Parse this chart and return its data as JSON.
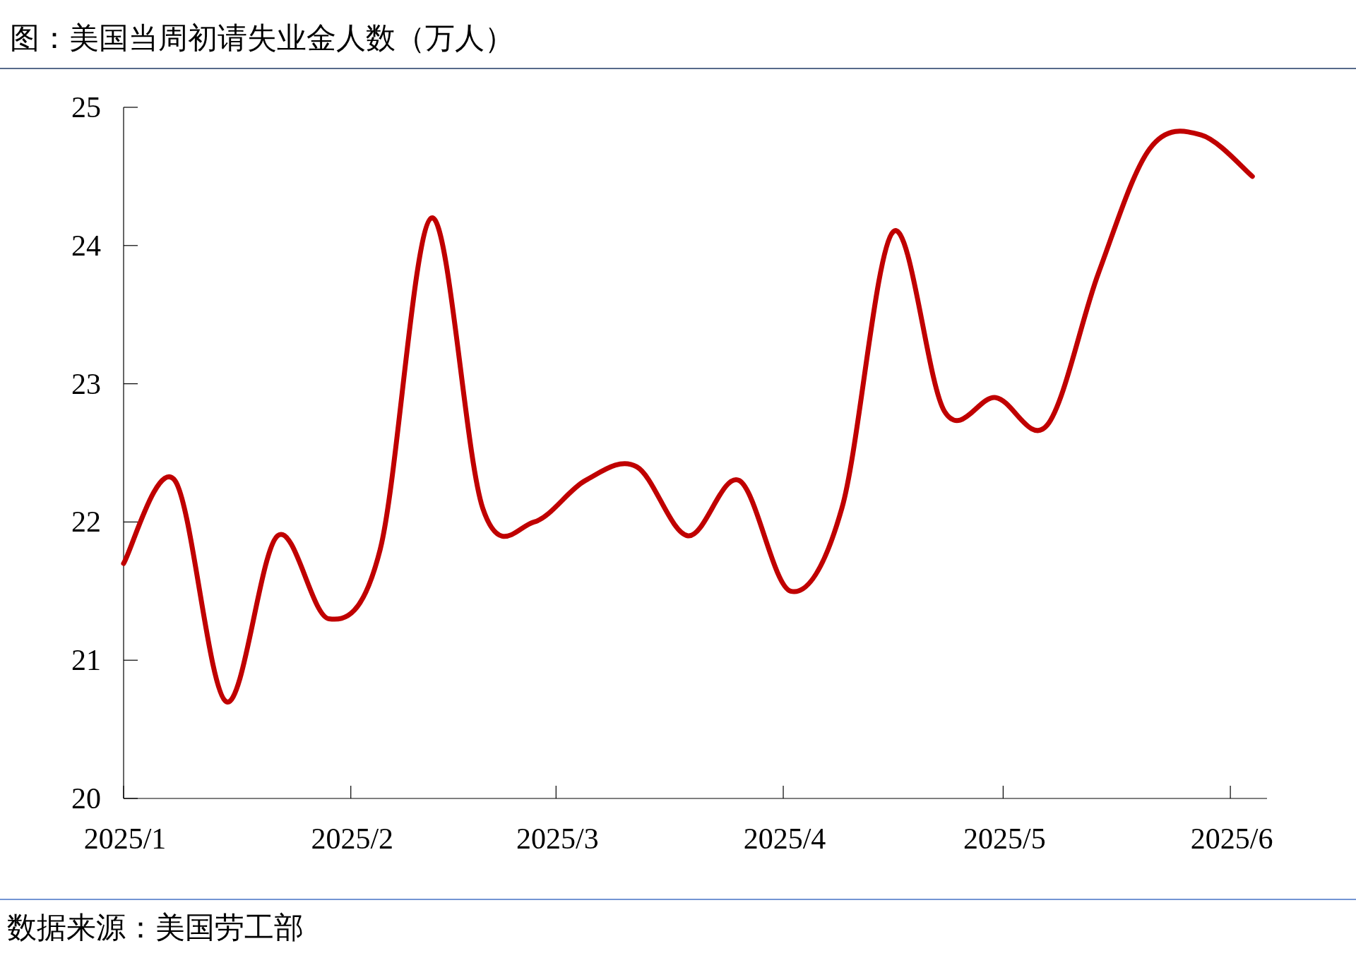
{
  "chart_data": {
    "type": "line",
    "title": "图：美国当周初请失业金人数（万人）",
    "x": [
      "2025-01-01",
      "2025-01-08",
      "2025-01-15",
      "2025-01-22",
      "2025-01-29",
      "2025-02-05",
      "2025-02-12",
      "2025-02-19",
      "2025-02-26",
      "2025-03-05",
      "2025-03-12",
      "2025-03-19",
      "2025-03-26",
      "2025-04-02",
      "2025-04-09",
      "2025-04-16",
      "2025-04-23",
      "2025-04-30",
      "2025-05-07",
      "2025-05-14",
      "2025-05-21",
      "2025-05-28",
      "2025-06-04"
    ],
    "series": [
      {
        "color": "#c00000",
        "values": [
          21.7,
          22.3,
          20.7,
          21.9,
          21.3,
          21.8,
          24.2,
          22.1,
          22.0,
          22.3,
          22.4,
          21.9,
          22.3,
          21.5,
          22.1,
          24.1,
          22.8,
          22.9,
          22.7,
          23.8,
          24.7,
          24.8,
          24.5
        ]
      }
    ],
    "xlim": [
      "2025-01-01",
      "2025-06-06"
    ],
    "xticks": [
      {
        "value": "2025-01-01",
        "label": "2025/1"
      },
      {
        "value": "2025-02-01",
        "label": "2025/2"
      },
      {
        "value": "2025-03-01",
        "label": "2025/3"
      },
      {
        "value": "2025-04-01",
        "label": "2025/4"
      },
      {
        "value": "2025-05-01",
        "label": "2025/5"
      },
      {
        "value": "2025-06-01",
        "label": "2025/6"
      }
    ],
    "ylim": [
      20,
      25
    ],
    "yticks": [
      20,
      21,
      22,
      23,
      24,
      25
    ],
    "marker": "none",
    "line_style": "solid",
    "annotations": [
      "数据来源：美国劳工部"
    ]
  }
}
